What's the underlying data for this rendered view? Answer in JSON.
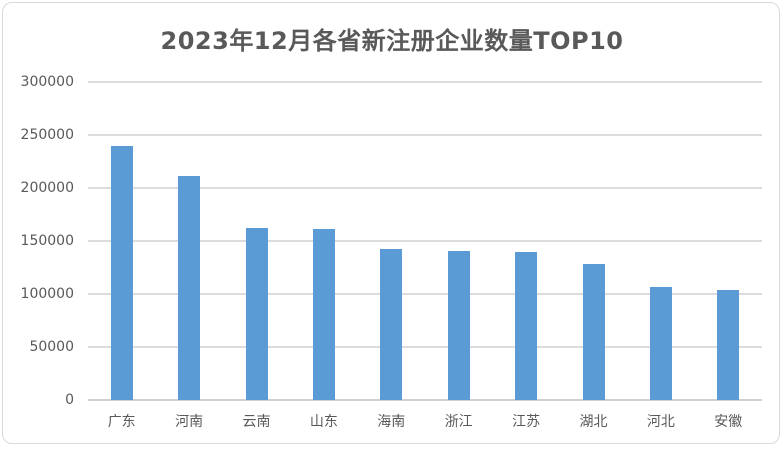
{
  "chart_data": {
    "type": "bar",
    "title": "2023年12月各省新注册企业数量TOP10",
    "categories": [
      "广东",
      "河南",
      "云南",
      "山东",
      "海南",
      "浙江",
      "江苏",
      "湖北",
      "河北",
      "安徽"
    ],
    "values": [
      240000,
      211000,
      162000,
      161000,
      142000,
      141000,
      140000,
      128000,
      107000,
      104000
    ],
    "xlabel": "",
    "ylabel": "",
    "ylim": [
      0,
      300000
    ],
    "y_tick_interval": 50000,
    "y_ticks": [
      300000,
      250000,
      200000,
      150000,
      100000,
      50000,
      0
    ],
    "grid": true,
    "legend_position": "none",
    "bar_color": "#5B9BD5"
  },
  "colors": {
    "bar": "#5B9BD5",
    "title_text": "#595959",
    "axis_text": "#595959",
    "gridline": "#DCDCDC",
    "axis_line": "#D0D0D0",
    "frame_border": "#D9D9D9",
    "background": "#FFFFFF"
  }
}
